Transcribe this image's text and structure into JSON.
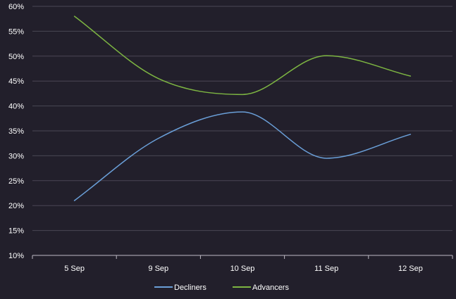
{
  "chart_data": {
    "type": "line",
    "categories": [
      "5 Sep",
      "9 Sep",
      "10 Sep",
      "11 Sep",
      "12 Sep"
    ],
    "ylim": [
      10,
      60
    ],
    "y_ticks": [
      10,
      15,
      20,
      25,
      30,
      35,
      40,
      45,
      50,
      55,
      60
    ],
    "y_tick_labels": [
      "10%",
      "15%",
      "20%",
      "25%",
      "30%",
      "35%",
      "40%",
      "45%",
      "50%",
      "55%",
      "60%"
    ],
    "y_unit": "%",
    "grid": true,
    "smooth": true,
    "legend_position": "bottom",
    "series": [
      {
        "name": "Decliners",
        "values": [
          21,
          33.5,
          38.8,
          29.5,
          34.3
        ],
        "color": "#6a9fd8"
      },
      {
        "name": "Advancers",
        "values": [
          58,
          45.5,
          42.3,
          50.1,
          46
        ],
        "color": "#7db542"
      }
    ],
    "colors": {
      "background": "#221f2b",
      "grid": "#4a4754",
      "axis": "#bdbac4",
      "text": "#ffffff"
    }
  }
}
